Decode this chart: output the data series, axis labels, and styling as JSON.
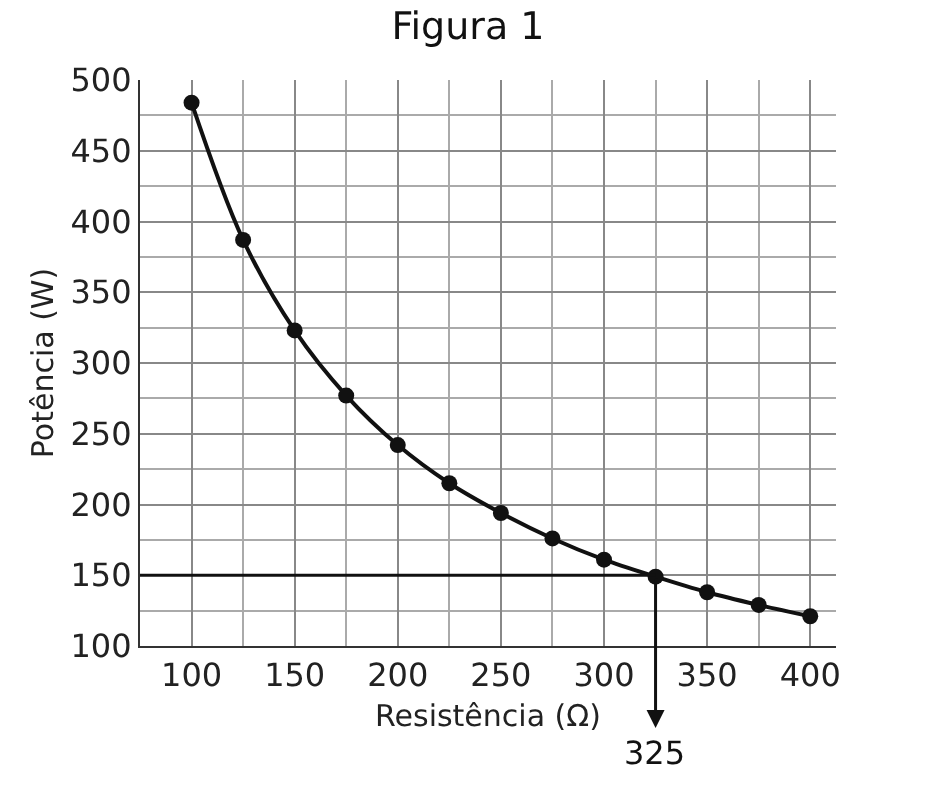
{
  "chart_data": {
    "type": "line",
    "title": "Figura 1",
    "xlabel": "Resistência (Ω)",
    "ylabel": "Potência (W)",
    "x": [
      100,
      125,
      150,
      175,
      200,
      225,
      250,
      275,
      300,
      325,
      350,
      375,
      400
    ],
    "series": [
      {
        "color": "#111111",
        "values": [
          484,
          387,
          323,
          277,
          242,
          215,
          194,
          176,
          161,
          149,
          138,
          129,
          121
        ]
      }
    ],
    "marker": "circle",
    "line_style": "solid",
    "grid": true,
    "xlim": [
      75,
      412.5
    ],
    "xticks": [
      100,
      150,
      200,
      250,
      300,
      350,
      400
    ],
    "ylim": [
      100,
      500
    ],
    "yticks": [
      100,
      150,
      200,
      250,
      300,
      350,
      400,
      450,
      500
    ],
    "ref_lines": [
      {
        "axis": "y",
        "value": 150
      },
      {
        "axis": "x",
        "value": 325,
        "label": "325"
      }
    ]
  }
}
